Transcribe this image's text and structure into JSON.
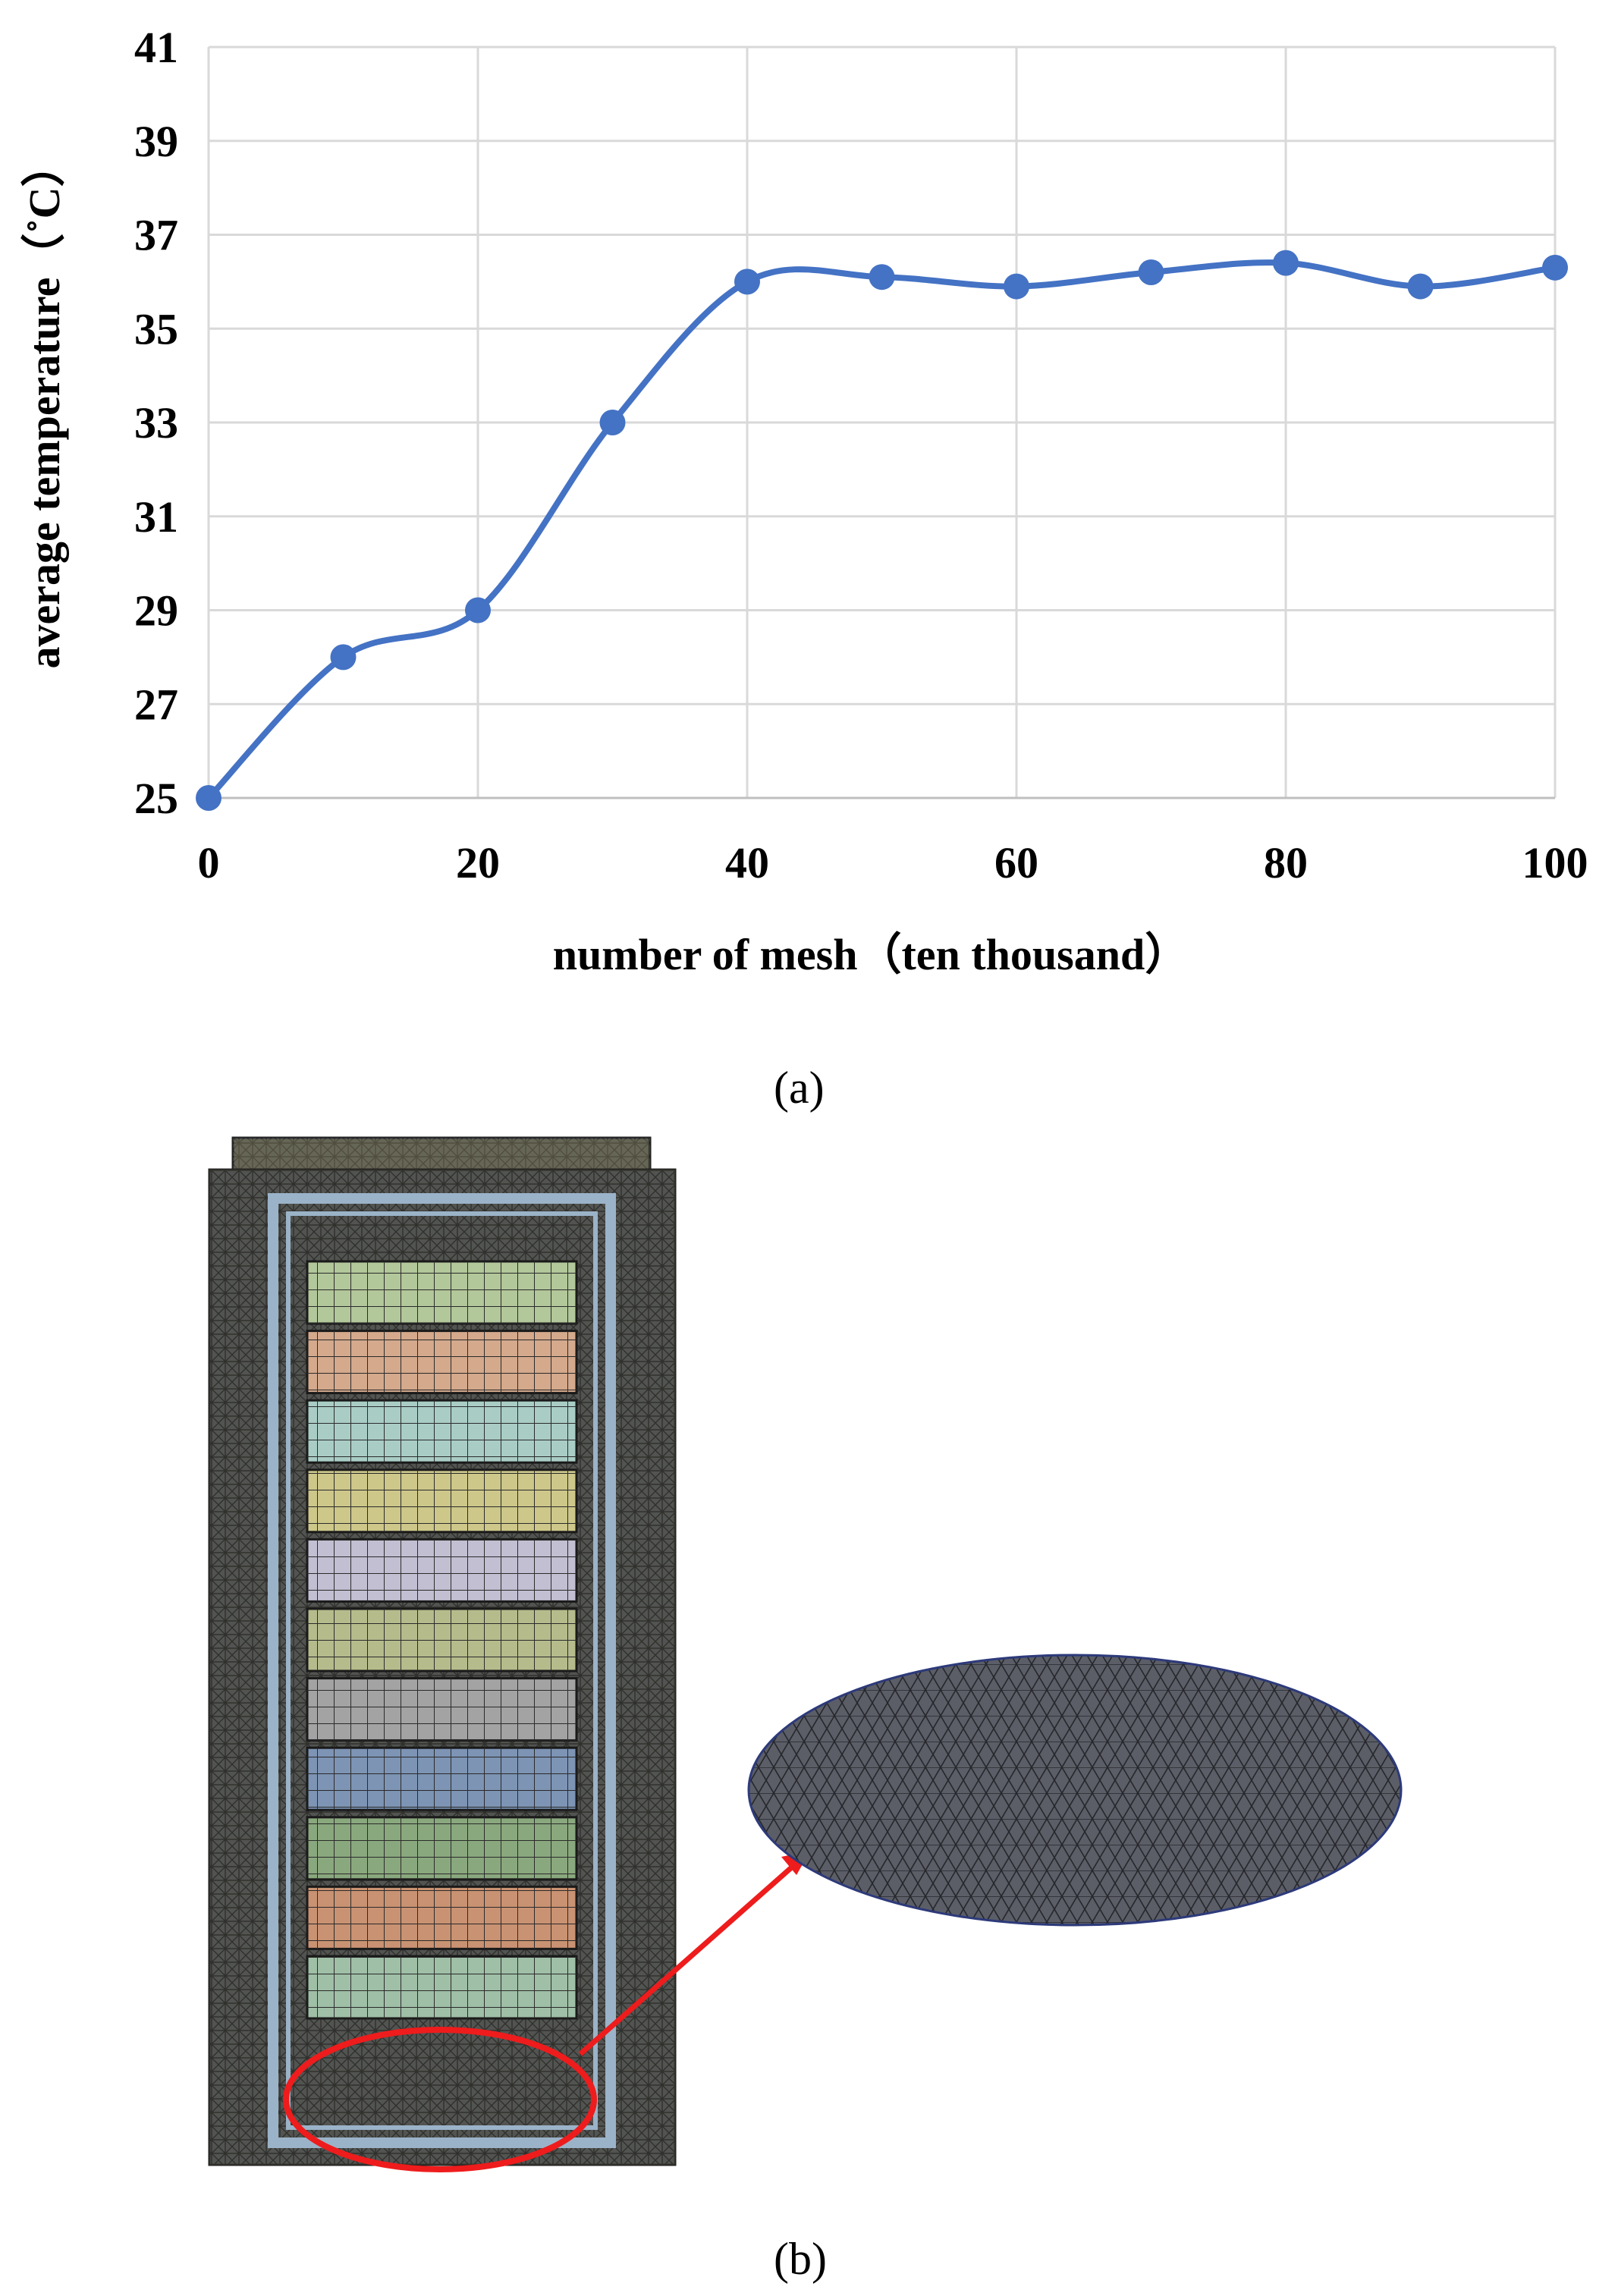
{
  "chart_data": {
    "type": "line",
    "smooth": true,
    "x": [
      0,
      10,
      20,
      30,
      40,
      50,
      60,
      70,
      80,
      90,
      100
    ],
    "y": [
      25,
      28,
      29,
      33,
      36,
      36.1,
      35.9,
      36.2,
      36.4,
      35.9,
      36.3
    ],
    "xlabel": "number of mesh（ten thousand）",
    "ylabel": "average temperature（˚C）",
    "xlim": [
      0,
      100
    ],
    "ylim": [
      25,
      41
    ],
    "xticks": [
      0,
      20,
      40,
      60,
      80,
      100
    ],
    "yticks": [
      25,
      27,
      29,
      31,
      33,
      35,
      37,
      39,
      41
    ],
    "grid": true,
    "line_color": "#4472c4",
    "marker_color": "#4472c4",
    "grid_color": "#d9d9d9"
  },
  "labels": {
    "panel_a": "(a)",
    "panel_b": "(b)"
  },
  "mesh_figure": {
    "stack_colors": [
      "#b2c79a",
      "#d4a98c",
      "#a9cdc5",
      "#cdc78a",
      "#c2bfd2",
      "#b6bb8c",
      "#a3a3a3",
      "#7d94b4",
      "#8aa87e",
      "#c99272",
      "#9fbfa6"
    ],
    "frame_color": "#9bb3c8",
    "cap_color": "#8f8a60",
    "outer_mesh_color": "#4a4d55",
    "highlight_color": "#ee1c1c",
    "zoom_fill": "#5a5d66"
  }
}
